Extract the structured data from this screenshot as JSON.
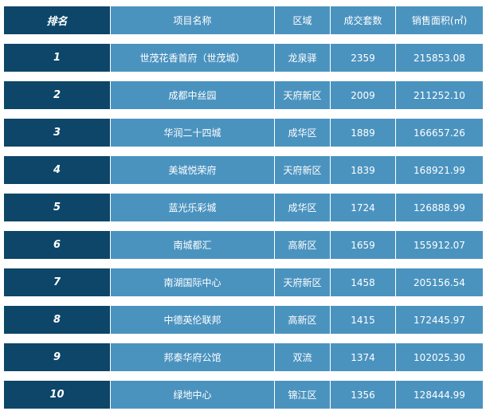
{
  "colors": {
    "rank_bg": "#0d4669",
    "cell_bg": "#4b93bf",
    "text": "#ffffff"
  },
  "header": [
    "排名",
    "项目名称",
    "区域",
    "成交套数",
    "销售面积(㎡)"
  ],
  "rows": [
    [
      "1",
      "世茂花香首府（世茂城）",
      "龙泉驿",
      "2359",
      "215853.08"
    ],
    [
      "2",
      "成都中丝园",
      "天府新区",
      "2009",
      "211252.10"
    ],
    [
      "3",
      "华润二十四城",
      "成华区",
      "1889",
      "166657.26"
    ],
    [
      "4",
      "美城悦荣府",
      "天府新区",
      "1839",
      "168921.99"
    ],
    [
      "5",
      "蓝光乐彩城",
      "成华区",
      "1724",
      "126888.99"
    ],
    [
      "6",
      "南城都汇",
      "高新区",
      "1659",
      "155912.07"
    ],
    [
      "7",
      "南湖国际中心",
      "天府新区",
      "1458",
      "205156.54"
    ],
    [
      "8",
      "中德英伦联邦",
      "高新区",
      "1415",
      "172445.97"
    ],
    [
      "9",
      "邦泰华府公馆",
      "双流",
      "1374",
      "102025.30"
    ],
    [
      "10",
      "绿地中心",
      "锦江区",
      "1356",
      "128444.99"
    ]
  ]
}
